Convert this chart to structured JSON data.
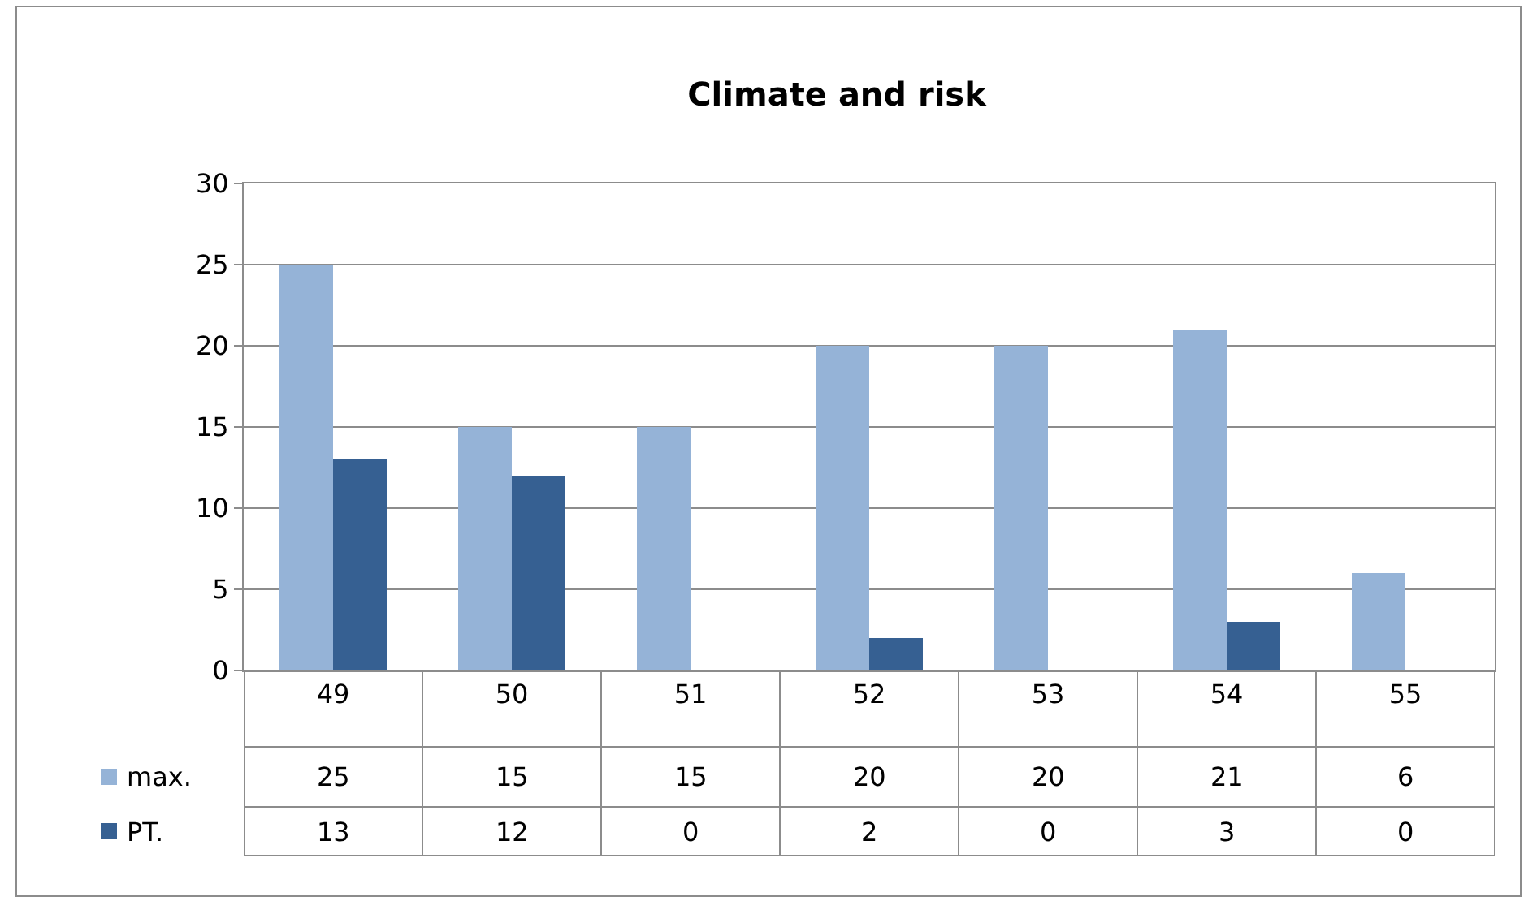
{
  "chart_data": {
    "type": "bar",
    "title": "Climate and risk",
    "categories": [
      "49",
      "50",
      "51",
      "52",
      "53",
      "54",
      "55"
    ],
    "series": [
      {
        "name": "max.",
        "color": "#95b3d7",
        "values": [
          25,
          15,
          15,
          20,
          20,
          21,
          6
        ]
      },
      {
        "name": "PT.",
        "color": "#366092",
        "values": [
          13,
          12,
          0,
          2,
          0,
          3,
          0
        ]
      }
    ],
    "ylim": [
      0,
      30
    ],
    "yticks": [
      0,
      5,
      10,
      15,
      20,
      25,
      30
    ],
    "grid": "y",
    "legend": "bottom",
    "data_labels": true
  }
}
